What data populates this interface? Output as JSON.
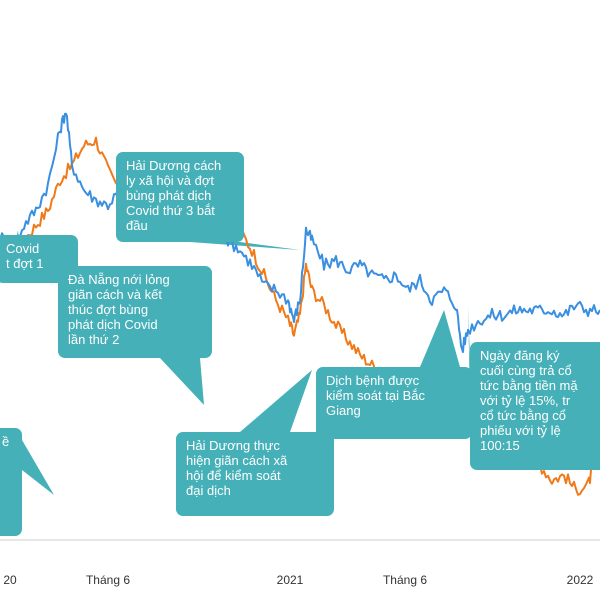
{
  "chart_data": {
    "type": "line",
    "title": "",
    "xlabel": "",
    "ylabel": "",
    "x_ticks": [
      "20",
      "Tháng 6",
      "2021",
      "Tháng 6",
      "2022"
    ],
    "grid": false,
    "legend": "none",
    "series": [
      {
        "color": "#f07a1a",
        "points": [
          [
            0.0,
            0.59
          ],
          [
            0.02,
            0.58
          ],
          [
            0.04,
            0.6
          ],
          [
            0.06,
            0.63
          ],
          [
            0.08,
            0.66
          ],
          [
            0.1,
            0.72
          ],
          [
            0.12,
            0.75
          ],
          [
            0.14,
            0.79
          ],
          [
            0.16,
            0.8
          ],
          [
            0.18,
            0.74
          ],
          [
            0.2,
            0.7
          ],
          [
            0.22,
            0.67
          ],
          [
            0.24,
            0.68
          ],
          [
            0.26,
            0.71
          ],
          [
            0.28,
            0.69
          ],
          [
            0.3,
            0.72
          ],
          [
            0.32,
            0.7
          ],
          [
            0.34,
            0.72
          ],
          [
            0.36,
            0.69
          ],
          [
            0.38,
            0.66
          ],
          [
            0.4,
            0.62
          ],
          [
            0.42,
            0.58
          ],
          [
            0.44,
            0.53
          ],
          [
            0.46,
            0.48
          ],
          [
            0.48,
            0.44
          ],
          [
            0.49,
            0.41
          ],
          [
            0.5,
            0.45
          ],
          [
            0.51,
            0.55
          ],
          [
            0.52,
            0.5
          ],
          [
            0.54,
            0.47
          ],
          [
            0.56,
            0.43
          ],
          [
            0.58,
            0.4
          ],
          [
            0.6,
            0.37
          ],
          [
            0.62,
            0.35
          ],
          [
            0.64,
            0.33
          ],
          [
            0.66,
            0.31
          ],
          [
            0.68,
            0.32
          ],
          [
            0.7,
            0.29
          ],
          [
            0.72,
            0.28
          ],
          [
            0.73,
            0.24
          ],
          [
            0.74,
            0.26
          ],
          [
            0.76,
            0.23
          ],
          [
            0.78,
            0.25
          ],
          [
            0.8,
            0.21
          ],
          [
            0.82,
            0.22
          ],
          [
            0.84,
            0.2
          ],
          [
            0.86,
            0.18
          ],
          [
            0.88,
            0.16
          ],
          [
            0.9,
            0.15
          ],
          [
            0.92,
            0.12
          ],
          [
            0.94,
            0.13
          ],
          [
            0.96,
            0.1
          ],
          [
            0.98,
            0.11
          ],
          [
            0.99,
            0.15
          ],
          [
            1.0,
            0.18
          ]
        ]
      },
      {
        "color": "#3a8fe0",
        "points": [
          [
            0.0,
            0.61
          ],
          [
            0.02,
            0.58
          ],
          [
            0.04,
            0.63
          ],
          [
            0.06,
            0.66
          ],
          [
            0.08,
            0.71
          ],
          [
            0.1,
            0.82
          ],
          [
            0.11,
            0.86
          ],
          [
            0.12,
            0.75
          ],
          [
            0.14,
            0.7
          ],
          [
            0.16,
            0.68
          ],
          [
            0.18,
            0.67
          ],
          [
            0.2,
            0.7
          ],
          [
            0.22,
            0.68
          ],
          [
            0.24,
            0.71
          ],
          [
            0.26,
            0.69
          ],
          [
            0.28,
            0.72
          ],
          [
            0.3,
            0.69
          ],
          [
            0.32,
            0.68
          ],
          [
            0.34,
            0.66
          ],
          [
            0.36,
            0.64
          ],
          [
            0.38,
            0.6
          ],
          [
            0.4,
            0.58
          ],
          [
            0.42,
            0.55
          ],
          [
            0.44,
            0.51
          ],
          [
            0.46,
            0.5
          ],
          [
            0.48,
            0.48
          ],
          [
            0.49,
            0.44
          ],
          [
            0.5,
            0.48
          ],
          [
            0.51,
            0.62
          ],
          [
            0.52,
            0.6
          ],
          [
            0.54,
            0.55
          ],
          [
            0.56,
            0.56
          ],
          [
            0.58,
            0.54
          ],
          [
            0.6,
            0.55
          ],
          [
            0.62,
            0.53
          ],
          [
            0.64,
            0.52
          ],
          [
            0.66,
            0.53
          ],
          [
            0.68,
            0.5
          ],
          [
            0.7,
            0.52
          ],
          [
            0.72,
            0.48
          ],
          [
            0.74,
            0.5
          ],
          [
            0.76,
            0.47
          ],
          [
            0.77,
            0.38
          ],
          [
            0.78,
            0.42
          ],
          [
            0.8,
            0.44
          ],
          [
            0.82,
            0.45
          ],
          [
            0.84,
            0.45
          ],
          [
            0.86,
            0.46
          ],
          [
            0.88,
            0.46
          ],
          [
            0.9,
            0.46
          ],
          [
            0.92,
            0.46
          ],
          [
            0.94,
            0.45
          ],
          [
            0.96,
            0.47
          ],
          [
            0.98,
            0.46
          ],
          [
            1.0,
            0.46
          ]
        ]
      }
    ],
    "annotations": [
      {
        "text": "Hải Dương cách\nly xã hội và đợt\nbùng phát dịch\nCovid thứ 3 bắt\nđầu"
      },
      {
        "text": "Covid\nt đợt 1"
      },
      {
        "text": "Đà Nẵng nới lỏng\ngiãn cách và kết\nthúc đợt bùng\nphát dịch Covid\nlần thứ 2"
      },
      {
        "text": "Dịch bệnh được\nkiểm soát tại Bắc\nGiang"
      },
      {
        "text": "Ngày đăng ký\ncuối cùng trả cổ\ntức bằng tiền mặ\nvới tỷ lệ 15%, tr\ncổ tức bằng cổ\nphiếu với tỷ lệ\n100:15"
      },
      {
        "text": "Hải Dương thực\nhiện giãn cách xã\nhội để kiểm soát\nđại dịch"
      },
      {
        "text": "ề"
      }
    ]
  }
}
